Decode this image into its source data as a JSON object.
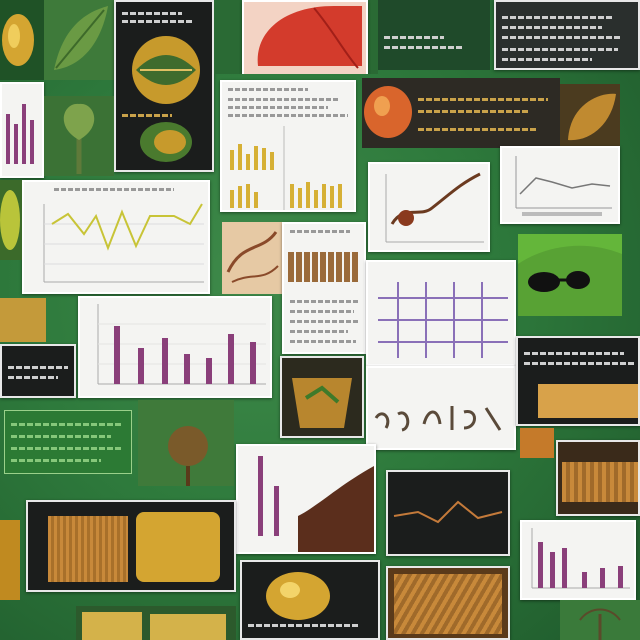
{
  "collage": {
    "description_free": true,
    "tile_count": 30
  },
  "colors": {
    "background_green": "#2e7a3c",
    "card_white": "#f4f4f2",
    "dark_panel": "#1b1d1c",
    "gold": "#d4a531",
    "bar_purple": "#8a3f7a",
    "line_yellow": "#c8c437",
    "red": "#d33b2c"
  },
  "icons": [
    "leaf-icon",
    "seed-icon",
    "cross-section-icon",
    "sunglasses-icon",
    "tree-icon"
  ]
}
